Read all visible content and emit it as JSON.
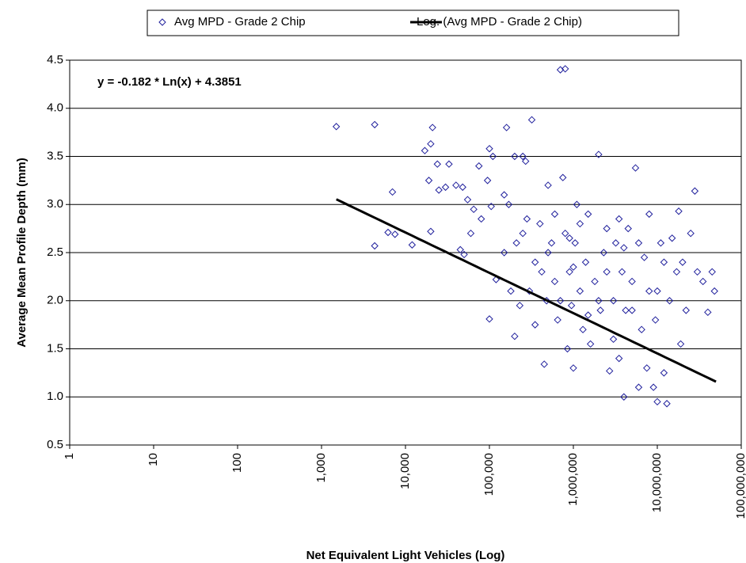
{
  "chart_data": {
    "type": "scatter",
    "xlabel": "Net Equivalent Light Vehicles (Log)",
    "ylabel": "Average Mean Profile Depth (mm)",
    "annotation": "y = -0.182 * Ln(x) + 4.3851",
    "log_x": true,
    "grid": true,
    "xlim": [
      1,
      100000000
    ],
    "ylim": [
      0.5,
      4.5
    ],
    "xticks": [
      1,
      10,
      100,
      {
        "value": 1000,
        "label": "1,000"
      },
      {
        "value": 10000,
        "label": "10,000"
      },
      {
        "value": 100000,
        "label": "100,000"
      },
      {
        "value": 1000000,
        "label": "1,000,000"
      },
      {
        "value": 10000000,
        "label": "10,000,000"
      },
      {
        "value": 100000000,
        "label": "100,000,000"
      }
    ],
    "yticks": [
      0.5,
      {
        "value": 1,
        "label": "1.0"
      },
      1.5,
      {
        "value": 2,
        "label": "2.0"
      },
      2.5,
      {
        "value": 3,
        "label": "3.0"
      },
      3.5,
      {
        "value": 4,
        "label": "4.0"
      },
      4.5
    ],
    "series": [
      {
        "name": "Avg MPD - Grade 2 Chip",
        "color": "#1f1f9c",
        "x": [
          1500,
          4300,
          4300,
          6200,
          7000,
          7500,
          12000,
          17000,
          19000,
          20000,
          21000,
          20000,
          24000,
          25000,
          30000,
          33000,
          40000,
          45000,
          48000,
          50000,
          55000,
          60000,
          65000,
          75000,
          80000,
          95000,
          100000,
          100000,
          110000,
          105000,
          120000,
          150000,
          160000,
          170000,
          180000,
          200000,
          200000,
          210000,
          230000,
          250000,
          270000,
          280000,
          300000,
          320000,
          350000,
          400000,
          420000,
          450000,
          480000,
          500000,
          550000,
          600000,
          650000,
          700000,
          800000,
          750000,
          800000,
          850000,
          900000,
          950000,
          1000000,
          1050000,
          1100000,
          1200000,
          1300000,
          1400000,
          1500000,
          1600000,
          1800000,
          2000000,
          2100000,
          2300000,
          2500000,
          2700000,
          3000000,
          3200000,
          3500000,
          3800000,
          4000000,
          4200000,
          4500000,
          5000000,
          5500000,
          6000000,
          6500000,
          7000000,
          7500000,
          8000000,
          9000000,
          9500000,
          10000000,
          11000000,
          12000000,
          13000000,
          14000000,
          15000000,
          17000000,
          18000000,
          19000000,
          20000000,
          22000000,
          25000000,
          28000000,
          30000000,
          35000000,
          40000000,
          45000000,
          48000000,
          500000,
          600000,
          700000,
          1200000,
          1500000,
          2500000,
          3000000,
          4000000,
          5000000,
          6000000,
          8000000,
          10000000,
          12000000,
          2000000,
          900000,
          350000,
          250000,
          150000,
          1000000,
          3500000
        ],
        "values": [
          3.81,
          3.83,
          2.57,
          2.71,
          3.13,
          2.69,
          2.58,
          3.56,
          3.25,
          3.63,
          3.8,
          2.72,
          3.42,
          3.15,
          3.18,
          3.42,
          3.2,
          2.53,
          3.18,
          2.48,
          3.05,
          2.7,
          2.95,
          3.4,
          2.85,
          3.25,
          1.81,
          3.58,
          3.5,
          2.98,
          2.22,
          2.5,
          3.8,
          3.0,
          2.1,
          1.63,
          3.5,
          2.6,
          1.95,
          3.5,
          3.45,
          2.85,
          2.1,
          3.88,
          1.75,
          2.8,
          2.3,
          1.34,
          2.0,
          3.2,
          2.6,
          2.2,
          1.8,
          4.4,
          4.41,
          3.28,
          2.7,
          1.5,
          2.3,
          1.95,
          1.3,
          2.6,
          3.0,
          2.1,
          1.7,
          2.4,
          2.9,
          1.55,
          2.2,
          3.52,
          1.9,
          2.5,
          2.75,
          1.27,
          2.0,
          2.6,
          1.4,
          2.3,
          1.0,
          1.9,
          2.75,
          2.2,
          3.38,
          1.1,
          1.7,
          2.45,
          1.3,
          2.1,
          1.1,
          1.8,
          0.95,
          2.6,
          1.25,
          0.93,
          2.0,
          2.65,
          2.3,
          2.93,
          1.55,
          2.4,
          1.9,
          2.7,
          3.14,
          2.3,
          2.2,
          1.88,
          2.3,
          2.1,
          2.5,
          2.9,
          2.0,
          2.8,
          1.85,
          2.3,
          1.6,
          2.55,
          1.9,
          2.6,
          2.9,
          2.1,
          2.4,
          2.0,
          2.65,
          2.4,
          2.7,
          3.1,
          2.35,
          2.85
        ]
      },
      {
        "name": "Log. (Avg MPD - Grade 2 Chip)",
        "color": "#000000",
        "trend": {
          "a": -0.182,
          "b": 4.3851,
          "x": [
            1500,
            50000000
          ]
        }
      }
    ]
  }
}
